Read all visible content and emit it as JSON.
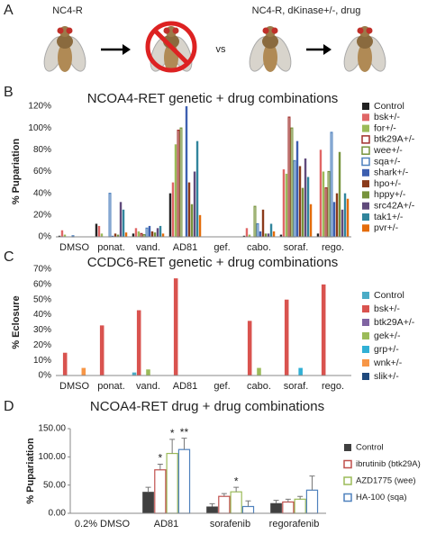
{
  "panel_a": {
    "label": "A",
    "left_label": "NC4-R",
    "right_label": "NC4-R, dKinase+/-, drug",
    "middle": "vs"
  },
  "chart_data": [
    {
      "type": "bar",
      "panel": "B",
      "title": "NCOA4-RET genetic + drug combinations",
      "y_label": "% Pupariation",
      "categories": [
        "DMSO",
        "ponat.",
        "vand.",
        "AD81",
        "gef.",
        "cabo.",
        "soraf.",
        "rego."
      ],
      "ylim": [
        0,
        120
      ],
      "yticks": [
        {
          "value": 0,
          "label": "0%"
        },
        {
          "value": 20,
          "label": "20%"
        },
        {
          "value": 40,
          "label": "40%"
        },
        {
          "value": 60,
          "label": "60%"
        },
        {
          "value": 80,
          "label": "80%"
        },
        {
          "value": 100,
          "label": "100%"
        },
        {
          "value": 120,
          "label": "120%"
        }
      ],
      "legend": "right",
      "series": [
        {
          "name": "Control",
          "color": "#222222",
          "values": [
            1,
            12,
            3,
            40,
            0,
            1,
            2,
            3
          ]
        },
        {
          "name": "bsk+/-",
          "color": "#e06666",
          "values": [
            6,
            10,
            8,
            50,
            0,
            8,
            62,
            80
          ]
        },
        {
          "name": "for+/-",
          "color": "#9bbb59",
          "values": [
            2,
            3,
            5,
            85,
            0,
            2,
            58,
            60
          ]
        },
        {
          "name": "btk29A+/-",
          "color": "#a0302c",
          "fill": "#ffffff",
          "values": [
            0,
            0,
            3,
            98,
            0,
            0,
            110,
            45
          ]
        },
        {
          "name": "wee+/-",
          "color": "#77933c",
          "fill": "#ffffff",
          "values": [
            0,
            0,
            2,
            100,
            0,
            28,
            100,
            60
          ]
        },
        {
          "name": "sqa+/-",
          "color": "#4f81bd",
          "fill": "#ffffff",
          "values": [
            1,
            40,
            8,
            0,
            0,
            12,
            70,
            96
          ]
        },
        {
          "name": "shark+/-",
          "color": "#3d5fb0",
          "values": [
            0,
            1,
            10,
            120,
            0,
            5,
            88,
            32
          ]
        },
        {
          "name": "hpo+/-",
          "color": "#8b3a1a",
          "values": [
            0,
            3,
            5,
            50,
            0,
            25,
            65,
            40
          ]
        },
        {
          "name": "hppy+/-",
          "color": "#77933c",
          "values": [
            0,
            2,
            4,
            30,
            0,
            3,
            45,
            78
          ]
        },
        {
          "name": "src42A+/-",
          "color": "#604a7b",
          "values": [
            0,
            32,
            8,
            60,
            0,
            3,
            72,
            25
          ]
        },
        {
          "name": "tak1+/-",
          "color": "#31859c",
          "values": [
            0,
            25,
            10,
            88,
            0,
            12,
            55,
            40
          ]
        },
        {
          "name": "pvr+/-",
          "color": "#e46c0a",
          "values": [
            0,
            4,
            3,
            20,
            0,
            5,
            30,
            35
          ]
        }
      ]
    },
    {
      "type": "bar",
      "panel": "C",
      "title": "CCDC6-RET genetic + drug combinations",
      "y_label": "% Eclosure",
      "categories": [
        "DMSO",
        "ponat.",
        "vand.",
        "AD81",
        "gef.",
        "cabo.",
        "soraf.",
        "rego."
      ],
      "ylim": [
        0,
        70
      ],
      "yticks": [
        {
          "value": 0,
          "label": "0%"
        },
        {
          "value": 10,
          "label": "10%"
        },
        {
          "value": 20,
          "label": "20%"
        },
        {
          "value": 30,
          "label": "30%"
        },
        {
          "value": 40,
          "label": "40%"
        },
        {
          "value": 50,
          "label": "50%"
        },
        {
          "value": 60,
          "label": "60%"
        },
        {
          "value": 70,
          "label": "70%"
        }
      ],
      "legend": "right",
      "series": [
        {
          "name": "Control",
          "color": "#4bacc6",
          "values": [
            0,
            0,
            2,
            0,
            0,
            0,
            0,
            0
          ]
        },
        {
          "name": "bsk+/-",
          "color": "#d9534f",
          "values": [
            15,
            33,
            43,
            64,
            0,
            36,
            50,
            60
          ]
        },
        {
          "name": "btk29A+/-",
          "color": "#8064a2",
          "values": [
            0,
            0,
            0,
            0,
            0,
            0,
            0,
            0
          ]
        },
        {
          "name": "gek+/-",
          "color": "#9bbb59",
          "values": [
            0,
            0,
            4,
            0,
            0,
            5,
            0,
            0
          ]
        },
        {
          "name": "grp+/-",
          "color": "#31b0d5",
          "values": [
            0,
            0,
            0,
            0,
            0,
            0,
            5,
            0
          ]
        },
        {
          "name": "wnk+/-",
          "color": "#f79646",
          "values": [
            5,
            0,
            0,
            0,
            0,
            0,
            0,
            0
          ]
        },
        {
          "name": "slik+/-",
          "color": "#1f497d",
          "values": [
            0,
            0,
            0,
            0,
            0,
            0,
            0,
            0
          ]
        }
      ]
    },
    {
      "type": "bar",
      "panel": "D",
      "title": "NCOA4-RET drug + drug combinations",
      "y_label": "% Pupariation",
      "categories": [
        "0.2% DMSO",
        "AD81",
        "sorafenib",
        "regorafenib"
      ],
      "ylim": [
        0,
        150
      ],
      "yticks": [
        {
          "value": 0,
          "label": "0.00"
        },
        {
          "value": 50,
          "label": "50.00"
        },
        {
          "value": 100,
          "label": "100.00"
        },
        {
          "value": 150,
          "label": "150.00"
        }
      ],
      "legend": "right",
      "series": [
        {
          "name": "Control",
          "color": "#404040",
          "values": [
            0,
            38,
            12,
            18
          ],
          "errors": [
            0,
            8,
            5,
            5
          ],
          "stars": [
            null,
            null,
            null,
            null
          ]
        },
        {
          "name": "ibrutinib (btk29A)",
          "color": "#c0504d",
          "fill": "#ffffff",
          "values": [
            0,
            77,
            30,
            20
          ],
          "errors": [
            0,
            10,
            5,
            5
          ],
          "stars": [
            null,
            "*",
            null,
            null
          ]
        },
        {
          "name": "AZD1775 (wee)",
          "color": "#9bbb59",
          "fill": "#ffffff",
          "values": [
            0,
            106,
            38,
            25
          ],
          "errors": [
            0,
            25,
            8,
            5
          ],
          "stars": [
            null,
            "*",
            "*",
            null
          ]
        },
        {
          "name": "HA-100 (sqa)",
          "color": "#4f81bd",
          "fill": "#ffffff",
          "values": [
            0,
            113,
            12,
            41
          ],
          "errors": [
            0,
            20,
            10,
            25
          ],
          "stars": [
            null,
            "**",
            null,
            null
          ]
        }
      ]
    }
  ]
}
